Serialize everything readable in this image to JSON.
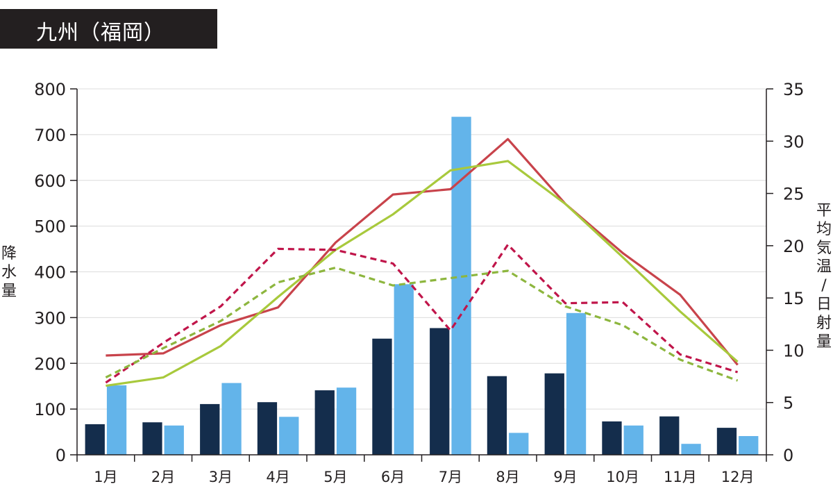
{
  "title": "九州（福岡）",
  "chart_data": {
    "type": "bar",
    "categories": [
      "1月",
      "2月",
      "3月",
      "4月",
      "5月",
      "6月",
      "7月",
      "8月",
      "9月",
      "10月",
      "11月",
      "12月"
    ],
    "y_left": {
      "label": "降水量",
      "range": [
        0,
        800
      ],
      "ticks": [
        0,
        100,
        200,
        300,
        400,
        500,
        600,
        700,
        800
      ]
    },
    "y_right": {
      "label": "平均気温 / 日射量",
      "range": [
        0,
        35
      ],
      "ticks": [
        0,
        5,
        10,
        15,
        20,
        25,
        30,
        35
      ]
    },
    "grid": true,
    "bar_series": [
      {
        "color": "#142d4c",
        "axis": "left",
        "values": [
          67,
          71,
          111,
          115,
          141,
          254,
          277,
          172,
          178,
          73,
          84,
          59
        ]
      },
      {
        "color": "#63b4ea",
        "axis": "left",
        "values": [
          152,
          64,
          157,
          83,
          147,
          373,
          739,
          48,
          310,
          64,
          24,
          41
        ]
      }
    ],
    "line_series": [
      {
        "color": "#c8434b",
        "style": "solid",
        "axis": "right",
        "values": [
          9.5,
          9.7,
          12.4,
          14.1,
          20.3,
          24.9,
          25.4,
          30.2,
          24.0,
          19.3,
          15.3,
          8.6
        ]
      },
      {
        "color": "#a8c93c",
        "style": "solid",
        "axis": "right",
        "values": [
          6.6,
          7.4,
          10.4,
          15.1,
          19.6,
          23.0,
          27.2,
          28.1,
          24.0,
          18.9,
          13.7,
          8.9
        ]
      },
      {
        "color": "#c0154a",
        "style": "dashed",
        "axis": "right",
        "values": [
          6.9,
          10.7,
          14.2,
          19.7,
          19.6,
          18.3,
          11.9,
          20.1,
          14.5,
          14.6,
          9.6,
          7.9
        ]
      },
      {
        "color": "#8db63e",
        "style": "dashed",
        "axis": "right",
        "values": [
          7.4,
          10.2,
          12.8,
          16.5,
          17.9,
          16.2,
          16.9,
          17.6,
          14.2,
          12.4,
          9.1,
          7.1
        ]
      }
    ]
  }
}
